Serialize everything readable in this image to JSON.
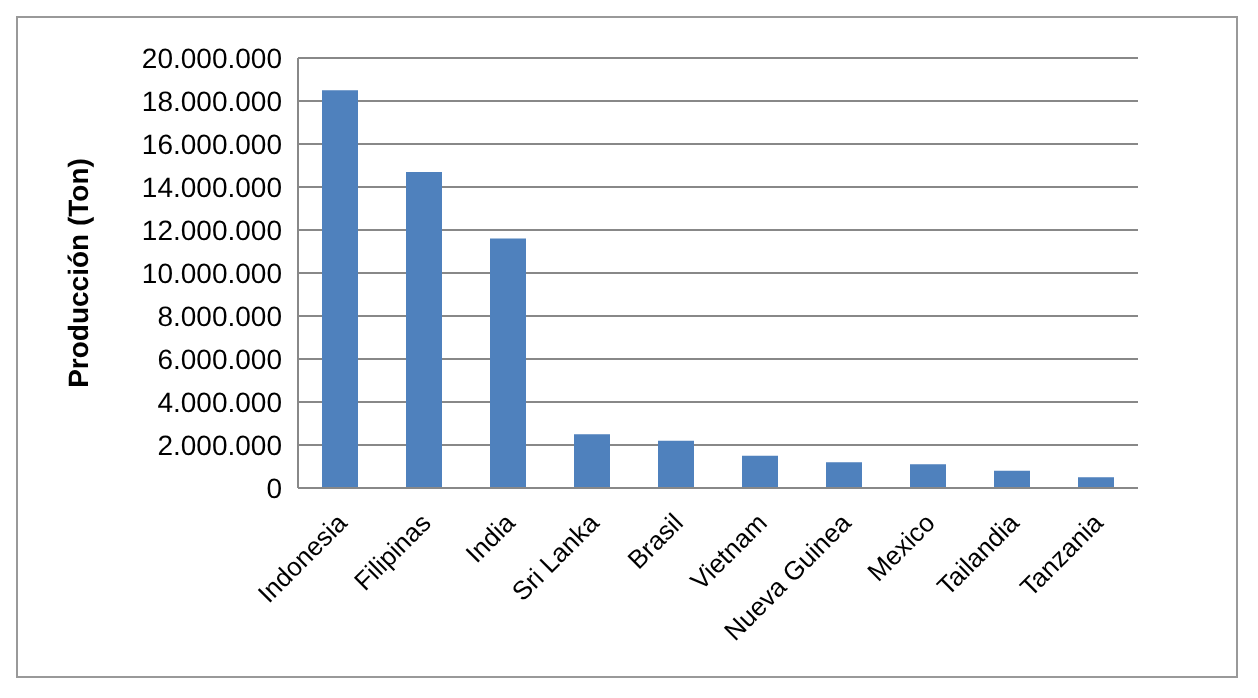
{
  "chart_data": {
    "type": "bar",
    "ylabel": "Producción (Ton)",
    "categories": [
      "Indonesia",
      "Filipinas",
      "India",
      "Sri Lanka",
      "Brasil",
      "Vietnam",
      "Nueva Guinea",
      "Mexico",
      "Tailandia",
      "Tanzania"
    ],
    "values": [
      18500000,
      14700000,
      11600000,
      2500000,
      2200000,
      1500000,
      1200000,
      1100000,
      800000,
      500000
    ],
    "color": "#4f81bd",
    "ylim": [
      0,
      20000000
    ],
    "yticks": [
      0,
      {
        "value": 2000000,
        "label": "2.000.000"
      },
      {
        "value": 4000000,
        "label": "4.000.000"
      },
      {
        "value": 6000000,
        "label": "6.000.000"
      },
      {
        "value": 8000000,
        "label": "8.000.000"
      },
      {
        "value": 10000000,
        "label": "10.000.000"
      },
      {
        "value": 12000000,
        "label": "12.000.000"
      },
      {
        "value": 14000000,
        "label": "14.000.000"
      },
      {
        "value": 16000000,
        "label": "16.000.000"
      },
      {
        "value": 18000000,
        "label": "18.000.000"
      },
      {
        "value": 20000000,
        "label": "20.000.000"
      }
    ],
    "grid": "y",
    "legend": false
  }
}
